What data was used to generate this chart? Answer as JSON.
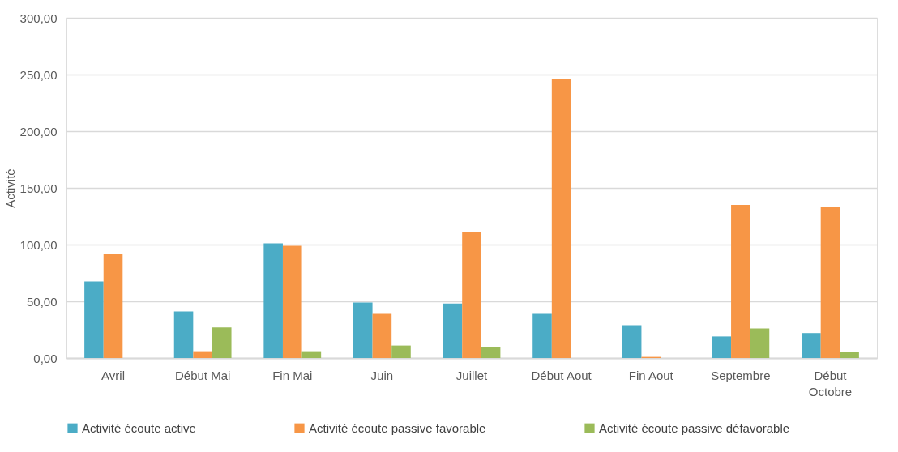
{
  "chart_data": {
    "type": "bar",
    "ylabel": "Activité",
    "categories": [
      "Avril",
      "Début Mai",
      "Fin Mai",
      "Juin",
      "Juillet",
      "Début Aout",
      "Fin Aout",
      "Septembre",
      "Début Octobre"
    ],
    "series": [
      {
        "name": "Activité écoute active",
        "color": "#4bacc6",
        "values": [
          67.5,
          41,
          101,
          49,
          48,
          39,
          29,
          19,
          22
        ]
      },
      {
        "name": "Activité écoute passive favorable",
        "color": "#f79646",
        "values": [
          92,
          6,
          99,
          39,
          111,
          246,
          1,
          135,
          133
        ]
      },
      {
        "name": "Activité écoute passive défavorable",
        "color": "#9bbb59",
        "values": [
          0,
          27,
          6,
          11,
          10,
          0,
          0,
          26,
          5
        ]
      }
    ],
    "ylim": [
      0,
      300
    ],
    "yticks": [
      {
        "value": 0,
        "label": "0,00"
      },
      {
        "value": 50,
        "label": "50,00"
      },
      {
        "value": 100,
        "label": "100,00"
      },
      {
        "value": 150,
        "label": "150,00"
      },
      {
        "value": 200,
        "label": "200,00"
      },
      {
        "value": 250,
        "label": "250,00"
      },
      {
        "value": 300,
        "label": "300,00"
      }
    ],
    "grid": "y",
    "legend": "bottom"
  }
}
